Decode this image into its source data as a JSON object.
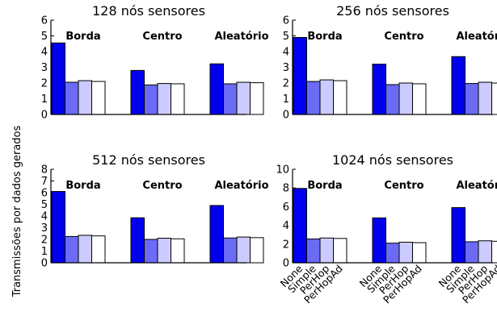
{
  "ylabel": "Transmissões por dados gerados",
  "chart_data": [
    {
      "type": "bar",
      "title": "128 nós sensores",
      "groups": [
        "Borda",
        "Centro",
        "Aleatório"
      ],
      "series_names": [
        "None",
        "Simple",
        "PerHop",
        "PerHopAd"
      ],
      "values": [
        [
          4.55,
          2.05,
          2.15,
          2.1
        ],
        [
          2.8,
          1.88,
          1.97,
          1.95
        ],
        [
          3.22,
          1.95,
          2.05,
          2.02
        ]
      ],
      "ylim": [
        0,
        6
      ],
      "yticks": [
        "0",
        "1",
        "2",
        "3",
        "4",
        "5",
        "6"
      ],
      "show_xticklabels": false
    },
    {
      "type": "bar",
      "title": "256 nós sensores",
      "groups": [
        "Borda",
        "Centro",
        "Aleatório"
      ],
      "series_names": [
        "None",
        "Simple",
        "PerHop",
        "PerHopAd"
      ],
      "values": [
        [
          4.9,
          2.1,
          2.2,
          2.15
        ],
        [
          3.2,
          1.9,
          2.0,
          1.95
        ],
        [
          3.68,
          1.97,
          2.05,
          2.0
        ]
      ],
      "ylim": [
        0,
        6
      ],
      "yticks": [
        "0",
        "1",
        "2",
        "3",
        "4",
        "5",
        "6"
      ],
      "show_xticklabels": false
    },
    {
      "type": "bar",
      "title": "512 nós sensores",
      "groups": [
        "Borda",
        "Centro",
        "Aleatório"
      ],
      "series_names": [
        "None",
        "Simple",
        "PerHop",
        "PerHopAd"
      ],
      "values": [
        [
          6.1,
          2.25,
          2.35,
          2.3
        ],
        [
          3.85,
          2.0,
          2.1,
          2.05
        ],
        [
          4.9,
          2.12,
          2.2,
          2.15
        ]
      ],
      "ylim": [
        0,
        8
      ],
      "yticks": [
        "0",
        "1",
        "2",
        "3",
        "4",
        "5",
        "6",
        "7",
        "8"
      ],
      "show_xticklabels": false
    },
    {
      "type": "bar",
      "title": "1024 nós sensores",
      "groups": [
        "Borda",
        "Centro",
        "Aleatório"
      ],
      "series_names": [
        "None",
        "Simple",
        "PerHop",
        "PerHopAd"
      ],
      "values": [
        [
          7.95,
          2.55,
          2.65,
          2.6
        ],
        [
          4.8,
          2.1,
          2.2,
          2.15
        ],
        [
          5.9,
          2.25,
          2.35,
          2.3
        ]
      ],
      "ylim": [
        0,
        10
      ],
      "yticks": [
        "0",
        "2",
        "4",
        "6",
        "8",
        "10"
      ],
      "show_xticklabels": true
    }
  ],
  "colors": [
    "#0000ee",
    "#6b6bf5",
    "#cbcbff",
    "#ffffff"
  ]
}
